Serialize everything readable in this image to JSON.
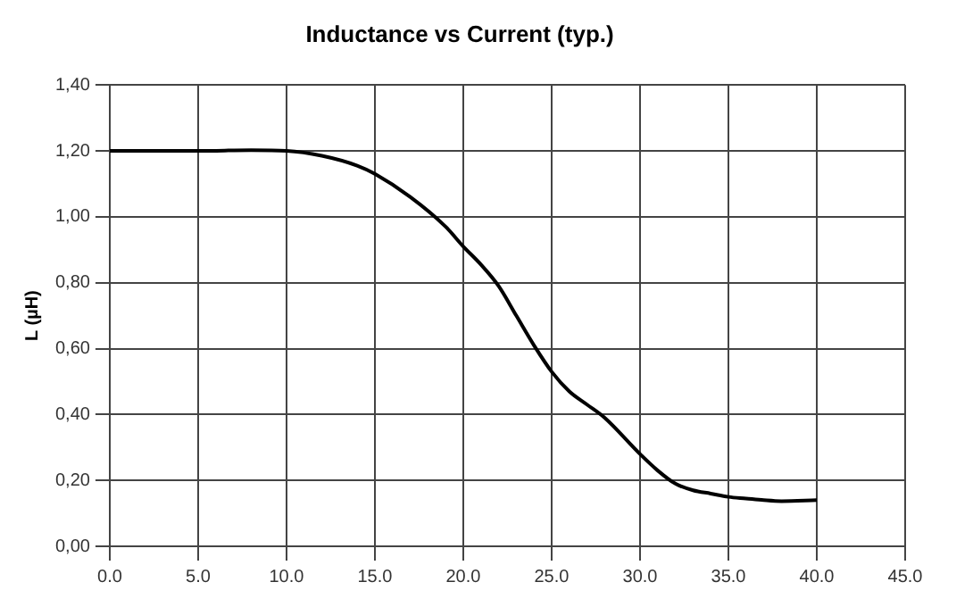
{
  "chart_data": {
    "type": "line",
    "title": "Inductance vs Current (typ.)",
    "ylabel": "L (µH)",
    "x": [
      0,
      5,
      8,
      10,
      12,
      14,
      15,
      17,
      19,
      20,
      21,
      22,
      23,
      24,
      25,
      26,
      27,
      28,
      30,
      31,
      32,
      33,
      34,
      35,
      36,
      37,
      38,
      40
    ],
    "series": [
      {
        "color": "#000000",
        "values": [
          1.2,
          1.2,
          1.202,
          1.2,
          1.185,
          1.155,
          1.13,
          1.06,
          0.97,
          0.91,
          0.855,
          0.79,
          0.7,
          0.61,
          0.53,
          0.47,
          0.43,
          0.39,
          0.28,
          0.23,
          0.19,
          0.17,
          0.16,
          0.15,
          0.145,
          0.14,
          0.137,
          0.14
        ]
      }
    ],
    "xlim": [
      0,
      45
    ],
    "xticks": [
      {
        "value": 0,
        "label": "0.0"
      },
      {
        "value": 5,
        "label": "5.0"
      },
      {
        "value": 10,
        "label": "10.0"
      },
      {
        "value": 15,
        "label": "15.0"
      },
      {
        "value": 20,
        "label": "20.0"
      },
      {
        "value": 25,
        "label": "25.0"
      },
      {
        "value": 30,
        "label": "30.0"
      },
      {
        "value": 35,
        "label": "35.0"
      },
      {
        "value": 40,
        "label": "40.0"
      },
      {
        "value": 45,
        "label": "45.0"
      }
    ],
    "ylim": [
      0,
      1.4
    ],
    "yticks": [
      {
        "value": 0,
        "label": "0,00"
      },
      {
        "value": 0.2,
        "label": "0,20"
      },
      {
        "value": 0.4,
        "label": "0,40"
      },
      {
        "value": 0.6,
        "label": "0,60"
      },
      {
        "value": 0.8,
        "label": "0,80"
      },
      {
        "value": 1,
        "label": "1,00"
      },
      {
        "value": 1.2,
        "label": "1,20"
      },
      {
        "value": 1.4,
        "label": "1,40"
      }
    ],
    "grid": true,
    "marker": "none",
    "line_style": "solid",
    "legend": false
  }
}
